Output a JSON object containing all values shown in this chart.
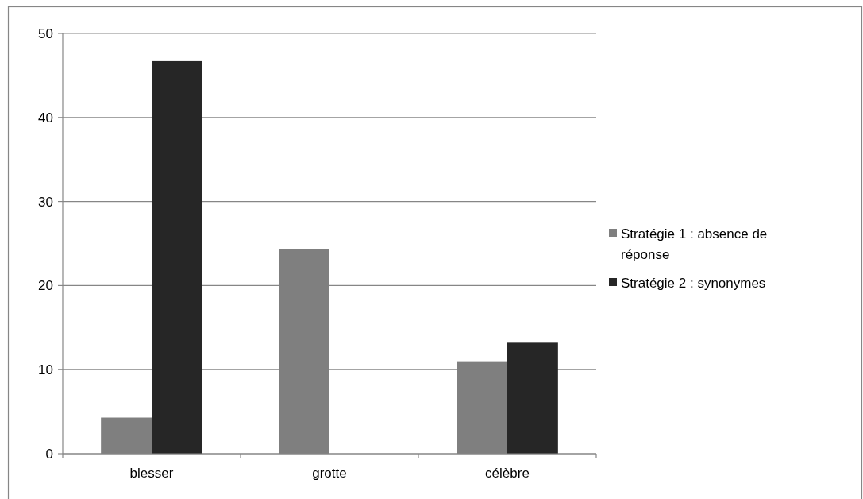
{
  "chart_data": {
    "type": "bar",
    "categories": [
      "blesser",
      "grotte",
      "célèbre"
    ],
    "series": [
      {
        "name": "Stratégie 1 : absence de réponse",
        "color": "#7f7f7f",
        "values": [
          4.3,
          24.3,
          11.0
        ]
      },
      {
        "name": "Stratégie 2 : synonymes",
        "color": "#262626",
        "values": [
          46.7,
          0,
          13.2
        ]
      }
    ],
    "ylim": [
      0,
      50
    ],
    "yticks": [
      0,
      10,
      20,
      30,
      40,
      50
    ],
    "grid": "y",
    "legend": "right"
  }
}
